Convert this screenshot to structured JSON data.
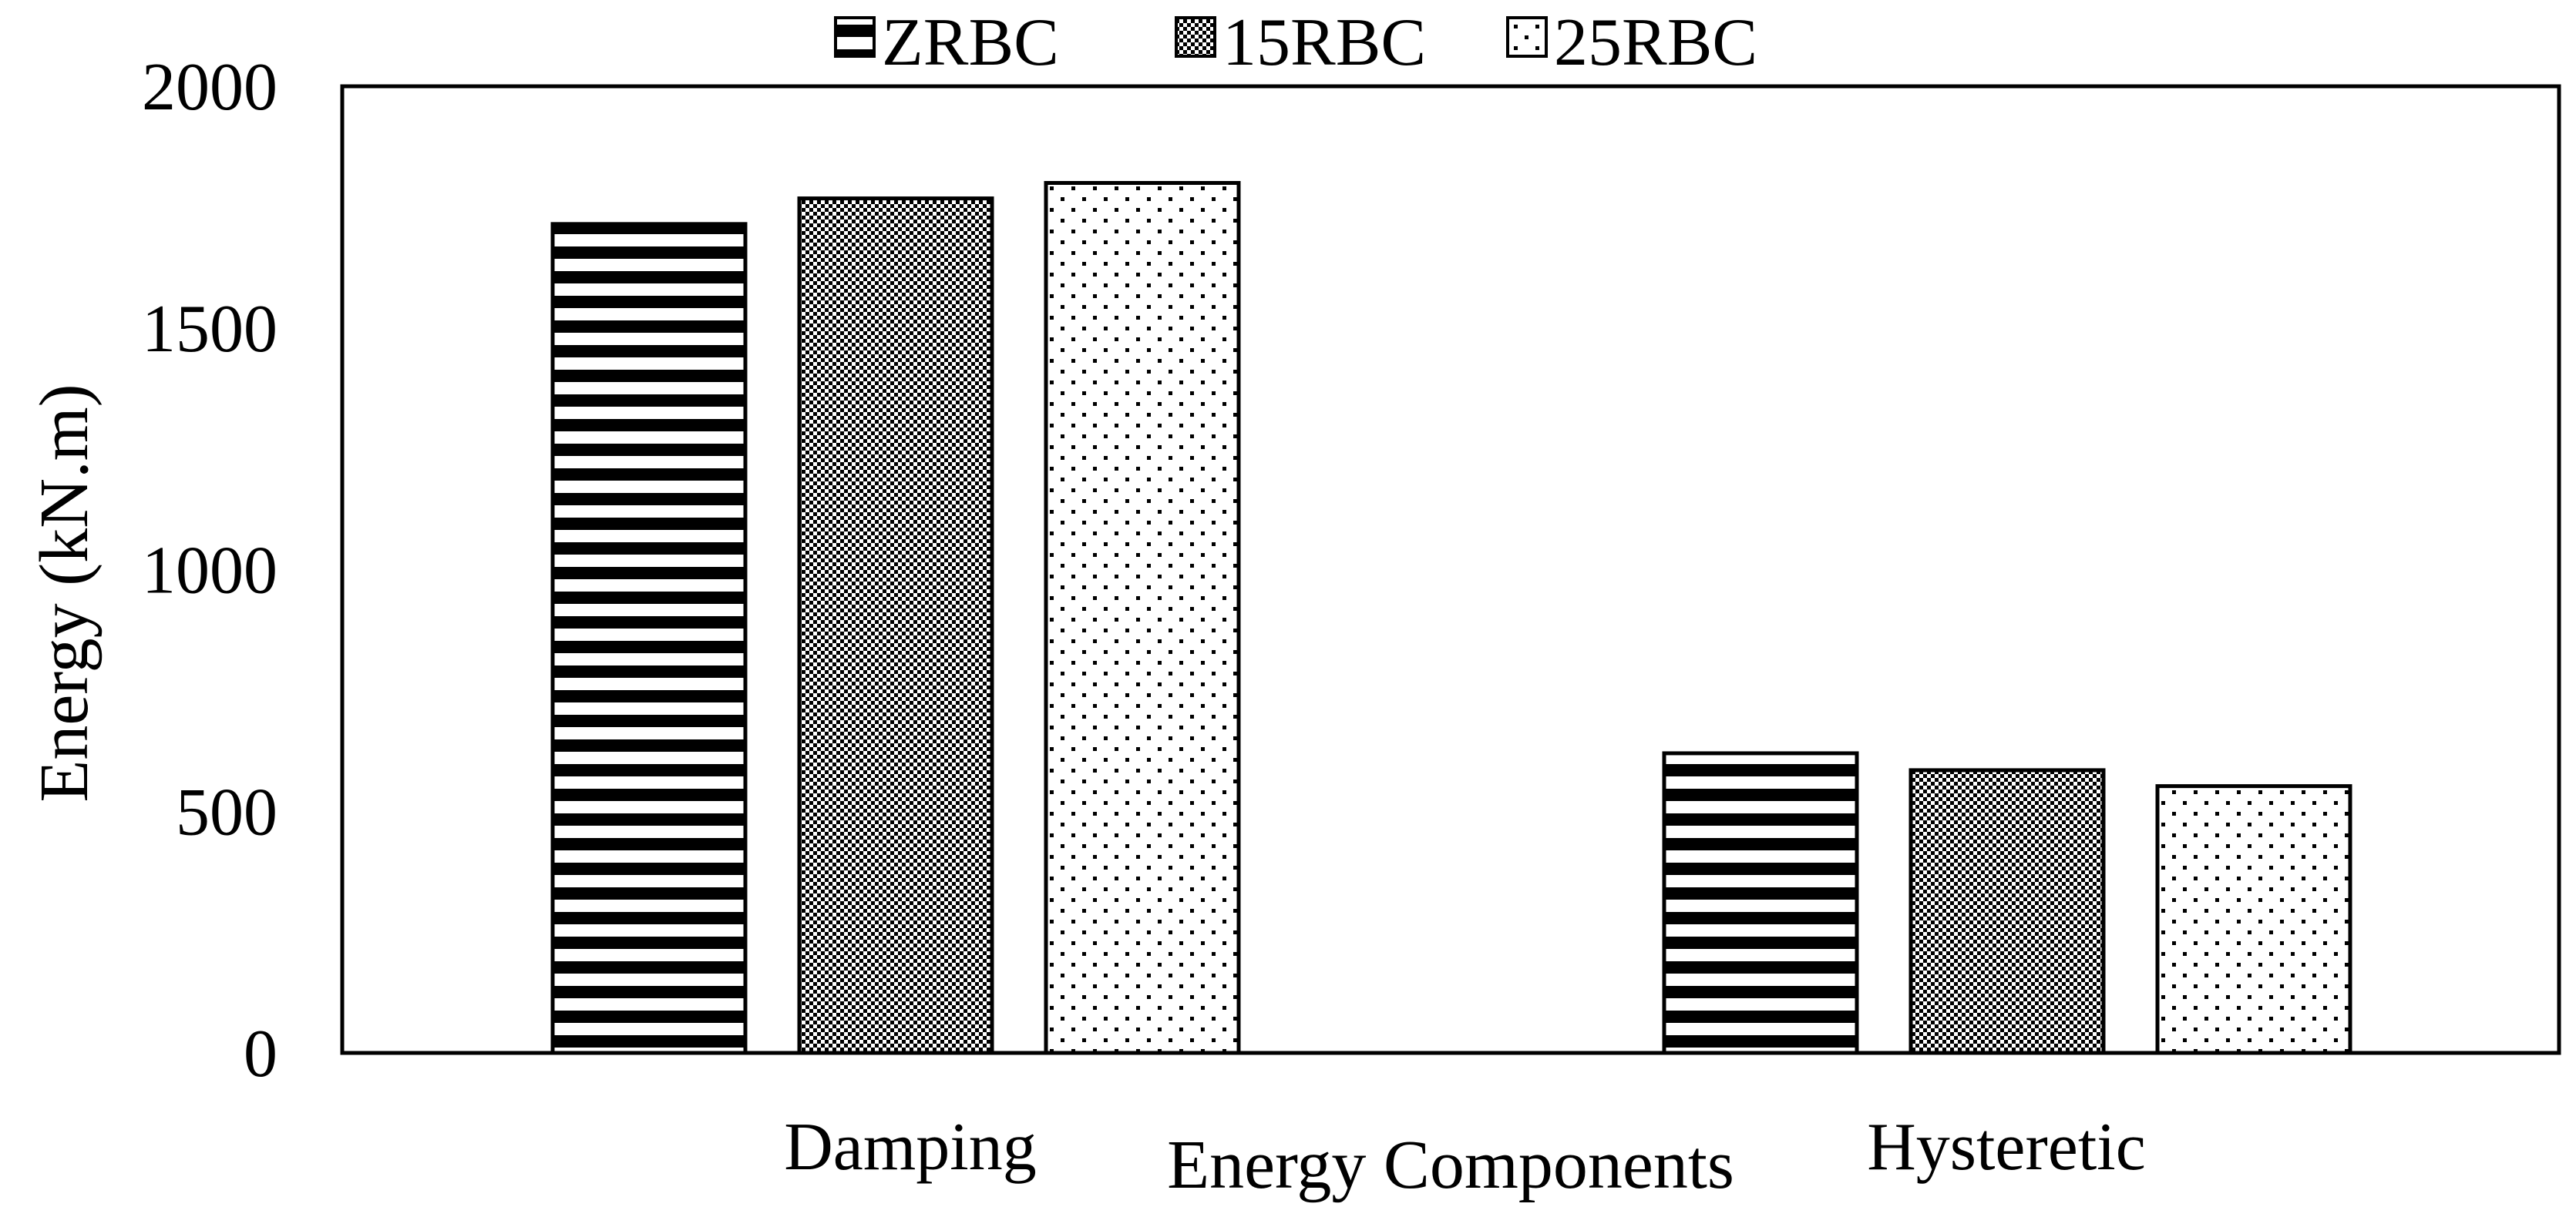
{
  "chart_data": {
    "type": "bar",
    "title": "",
    "xlabel": "Energy Components",
    "ylabel": "Energy  (kN.m)",
    "categories": [
      "Damping",
      "Hysteretic"
    ],
    "series": [
      {
        "name": "ZRBC",
        "pattern": "horizontal-stripes",
        "values": [
          1715,
          620
        ]
      },
      {
        "name": "15RBC",
        "pattern": "checkerboard",
        "values": [
          1768,
          585
        ]
      },
      {
        "name": "25RBC",
        "pattern": "dots",
        "values": [
          1800,
          552
        ]
      }
    ],
    "ylim": [
      0,
      2000
    ],
    "yticks": [
      "0",
      "500",
      "1000",
      "1500",
      "2000"
    ],
    "grid": false,
    "legend_position": "top-center",
    "colors": {
      "stroke": "#000000",
      "background": "#ffffff"
    }
  }
}
